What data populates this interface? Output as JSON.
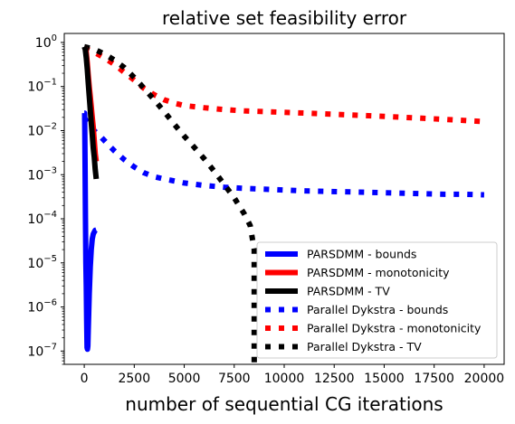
{
  "chart_data": {
    "type": "line",
    "title": "relative set feasibility error",
    "xlabel": "number of sequential CG iterations",
    "ylabel": "",
    "xlim": [
      -1000,
      21000
    ],
    "ylim": [
      5e-08,
      1.6
    ],
    "yscale": "log",
    "xticks": [
      0,
      2500,
      5000,
      7500,
      10000,
      12500,
      15000,
      17500,
      20000
    ],
    "xtick_labels": [
      "0",
      "2500",
      "5000",
      "7500",
      "10000",
      "12500",
      "15000",
      "17500",
      "20000"
    ],
    "yticks": [
      1e-07,
      1e-06,
      1e-05,
      0.0001,
      0.001,
      0.01,
      0.1,
      1
    ],
    "ytick_labels": [
      {
        "base": "10",
        "exp": "−7"
      },
      {
        "base": "10",
        "exp": "−6"
      },
      {
        "base": "10",
        "exp": "−5"
      },
      {
        "base": "10",
        "exp": "−4"
      },
      {
        "base": "10",
        "exp": "−3"
      },
      {
        "base": "10",
        "exp": "−2"
      },
      {
        "base": "10",
        "exp": "−1"
      },
      {
        "base": "10",
        "exp": "0"
      }
    ],
    "legend_position": "lower-right",
    "series": [
      {
        "name": "PARSDMM - bounds",
        "color": "#0000ff",
        "style": "solid",
        "x": [
          0,
          20,
          40,
          60,
          80,
          100,
          120,
          140,
          160,
          180,
          200,
          250,
          300,
          350,
          400,
          450,
          500,
          550,
          600
        ],
        "y": [
          0.025,
          0.025,
          0.002,
          0.0001,
          1e-05,
          3e-06,
          5e-07,
          1.2e-07,
          1.1e-07,
          1.3e-07,
          3e-07,
          2e-06,
          8e-06,
          2e-05,
          3.5e-05,
          4.5e-05,
          5e-05,
          5.5e-05,
          5.6e-05
        ]
      },
      {
        "name": "PARSDMM - monotonicity",
        "color": "#ff0000",
        "style": "solid",
        "x": [
          0,
          50,
          100,
          150,
          200,
          250,
          300,
          350,
          400,
          450,
          500,
          550,
          600
        ],
        "y": [
          0.75,
          0.72,
          0.6,
          0.35,
          0.18,
          0.1,
          0.06,
          0.035,
          0.02,
          0.012,
          0.006,
          0.003,
          0.002
        ]
      },
      {
        "name": "PARSDMM - TV",
        "color": "#000000",
        "style": "solid",
        "x": [
          0,
          50,
          100,
          150,
          200,
          250,
          300,
          350,
          400,
          450,
          500,
          550,
          600
        ],
        "y": [
          0.8,
          0.7,
          0.45,
          0.25,
          0.12,
          0.06,
          0.03,
          0.015,
          0.008,
          0.004,
          0.0025,
          0.0013,
          0.0008
        ]
      },
      {
        "name": "Parallel Dykstra - bounds",
        "color": "#0000ff",
        "style": "dotted",
        "x": [
          0,
          200,
          400,
          600,
          800,
          1000,
          1200,
          1500,
          2000,
          2500,
          3000,
          3500,
          4000,
          5000,
          6000,
          7000,
          8000,
          9000,
          10000,
          11000,
          12000,
          13000,
          14000,
          15000,
          16000,
          17000,
          18000,
          19000,
          20000
        ],
        "y": [
          0.02,
          0.014,
          0.011,
          0.009,
          0.0075,
          0.006,
          0.0048,
          0.0035,
          0.0022,
          0.0015,
          0.0011,
          0.0009,
          0.0008,
          0.00065,
          0.00057,
          0.00052,
          0.00049,
          0.00047,
          0.00045,
          0.00043,
          0.00042,
          0.00041,
          0.0004,
          0.00039,
          0.00038,
          0.00037,
          0.00036,
          0.00036,
          0.00035
        ]
      },
      {
        "name": "Parallel Dykstra - monotonicity",
        "color": "#ff0000",
        "style": "dotted",
        "x": [
          0,
          500,
          1000,
          1500,
          2000,
          2500,
          3000,
          3500,
          4000,
          4500,
          5000,
          6000,
          7000,
          8000,
          9000,
          10000,
          11000,
          12000,
          13000,
          14000,
          15000,
          16000,
          17000,
          18000,
          19000,
          20000
        ],
        "y": [
          0.75,
          0.6,
          0.45,
          0.32,
          0.21,
          0.14,
          0.09,
          0.065,
          0.05,
          0.042,
          0.037,
          0.033,
          0.03,
          0.028,
          0.027,
          0.026,
          0.025,
          0.024,
          0.023,
          0.022,
          0.021,
          0.02,
          0.019,
          0.018,
          0.017,
          0.016
        ]
      },
      {
        "name": "Parallel Dykstra - TV",
        "color": "#000000",
        "style": "dotted",
        "x": [
          0,
          500,
          1000,
          1500,
          2000,
          2500,
          3000,
          3500,
          4000,
          4500,
          5000,
          5500,
          6000,
          6500,
          7000,
          7500,
          8000,
          8300,
          8500,
          8500,
          8500
        ],
        "y": [
          0.8,
          0.7,
          0.55,
          0.4,
          0.27,
          0.16,
          0.09,
          0.05,
          0.027,
          0.014,
          0.0075,
          0.0042,
          0.0023,
          0.0012,
          0.0006,
          0.0003,
          0.00013,
          7e-05,
          2e-05,
          1e-06,
          5e-08
        ]
      }
    ]
  }
}
